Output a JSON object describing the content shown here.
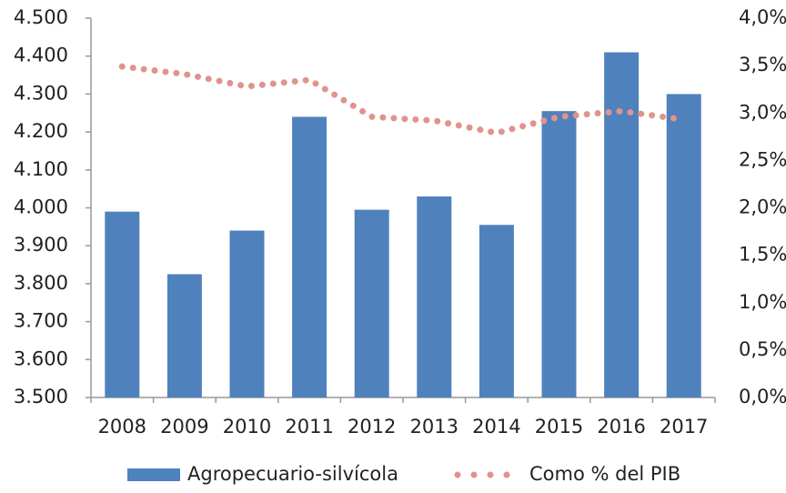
{
  "chart_data": {
    "type": "bar-line",
    "categories": [
      "2008",
      "2009",
      "2010",
      "2011",
      "2012",
      "2013",
      "2014",
      "2015",
      "2016",
      "2017"
    ],
    "series": [
      {
        "name": "Agropecuario-silvícola",
        "type": "bar",
        "color": "#4f81bd",
        "values": [
          3990,
          3825,
          3940,
          4240,
          3995,
          4030,
          3955,
          4255,
          4410,
          4300
        ]
      },
      {
        "name": "Como % del PIB",
        "type": "line",
        "axis": "y2",
        "color": "#e0938c",
        "line_style": "dotted",
        "values": [
          3.49,
          3.41,
          3.28,
          3.35,
          2.96,
          2.92,
          2.79,
          2.96,
          3.02,
          2.93
        ]
      }
    ],
    "ylim": [
      3500,
      4500
    ],
    "yticks": [
      {
        "value": 3500,
        "label": "3.500"
      },
      {
        "value": 3600,
        "label": "3.600"
      },
      {
        "value": 3700,
        "label": "3.700"
      },
      {
        "value": 3800,
        "label": "3.800"
      },
      {
        "value": 3900,
        "label": "3.900"
      },
      {
        "value": 4000,
        "label": "4.000"
      },
      {
        "value": 4100,
        "label": "4.100"
      },
      {
        "value": 4200,
        "label": "4.200"
      },
      {
        "value": 4300,
        "label": "4.300"
      },
      {
        "value": 4400,
        "label": "4.400"
      },
      {
        "value": 4500,
        "label": "4.500"
      }
    ],
    "y2lim": [
      0,
      4
    ],
    "y2ticks": [
      {
        "value": 0,
        "label": "0,0%"
      },
      {
        "value": 0.5,
        "label": "0,5%"
      },
      {
        "value": 1,
        "label": "1,0%"
      },
      {
        "value": 1.5,
        "label": "1,5%"
      },
      {
        "value": 2,
        "label": "2,0%"
      },
      {
        "value": 2.5,
        "label": "2,5%"
      },
      {
        "value": 3,
        "label": "3,0%"
      },
      {
        "value": 3.5,
        "label": "3,5%"
      },
      {
        "value": 4,
        "label": "4,0%"
      }
    ],
    "grid": false,
    "legend": "bottom"
  }
}
